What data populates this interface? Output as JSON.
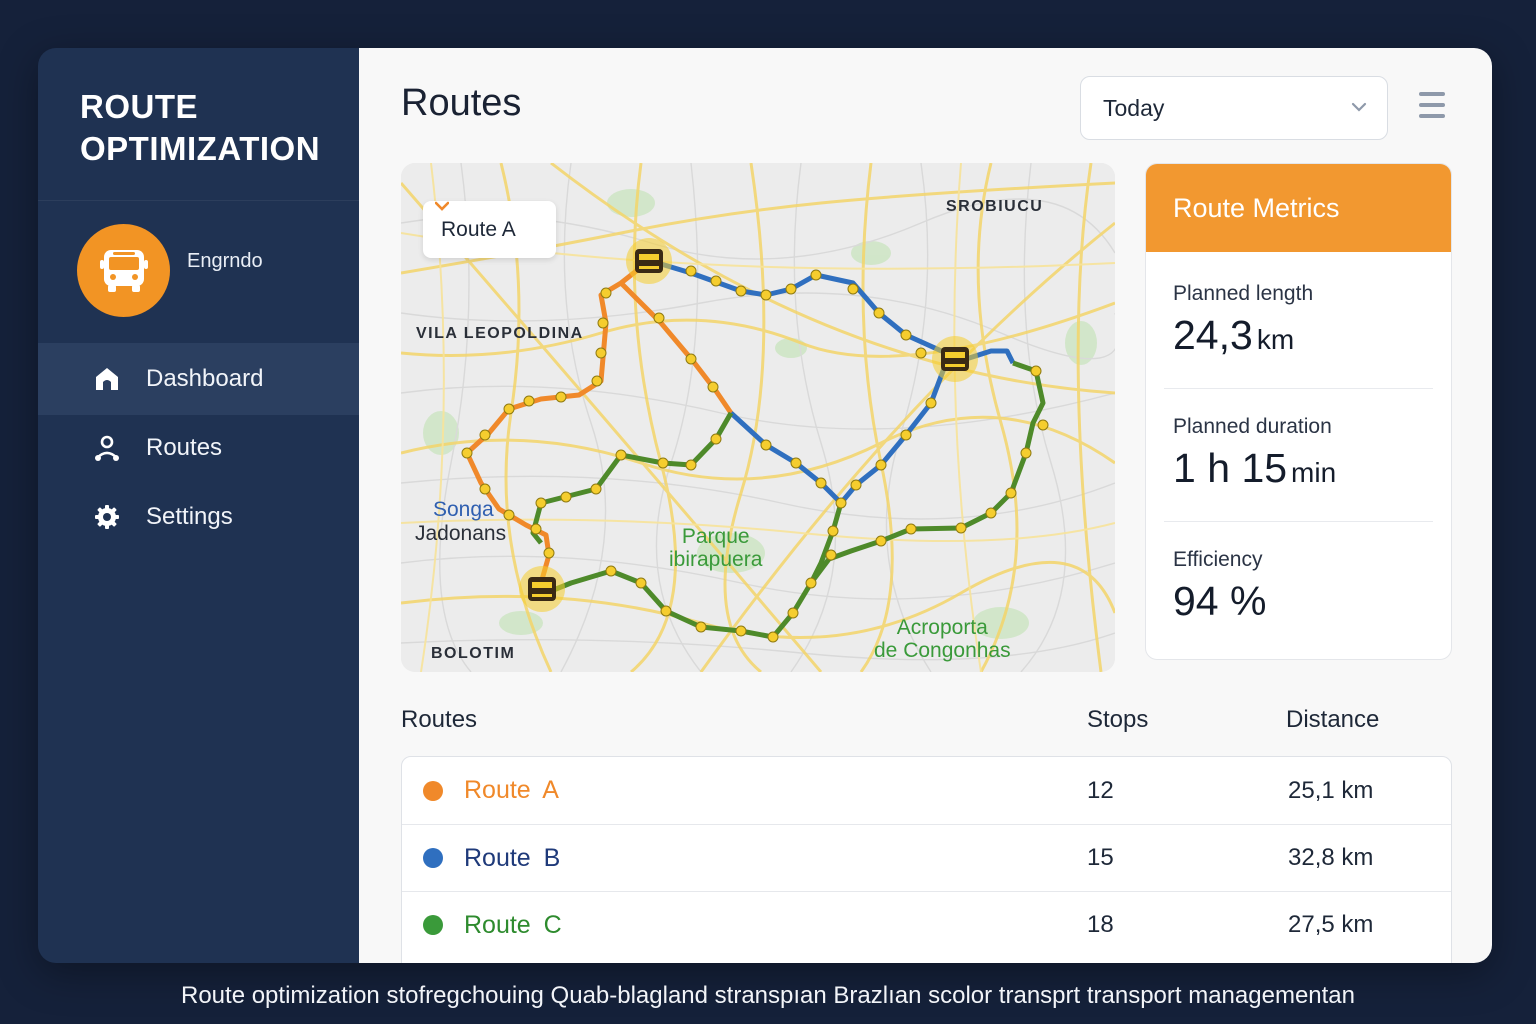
{
  "app": {
    "brand_line1": "ROUTE",
    "brand_line2": "OPTIMIZATION",
    "user_name": "Engrndo",
    "avatar_icon": "bus-icon",
    "accent_color": "#f29424"
  },
  "sidebar": {
    "items": [
      {
        "label": "Dashboard",
        "icon": "home-icon",
        "active": true
      },
      {
        "label": "Routes",
        "icon": "user-pin-icon",
        "active": false
      },
      {
        "label": "Settings",
        "icon": "gear-icon",
        "active": false
      }
    ]
  },
  "header": {
    "title": "Routes",
    "date_filter": "Today"
  },
  "map": {
    "route_selector": "Route A",
    "labels": {
      "srobiucu": "SROBIUCU",
      "vila": "VILA LEOPOLDINA",
      "songa": "Songa",
      "jadonans": "Jadonans",
      "parque_line1": "Parque",
      "parque_line2": "ibirapuera",
      "bolotim": "BOLOTIM",
      "acroporta_line1": "Acroporta",
      "acroporta_line2": "de Congonhas"
    },
    "route_colors": {
      "A": "#f0892a",
      "B": "#2f6fbf",
      "C": "#4e8a2a"
    }
  },
  "metrics": {
    "title": "Route Metrics",
    "planned_length": {
      "label": "Planned length",
      "value": "24,3",
      "unit": "km"
    },
    "planned_duration": {
      "label": "Planned duration",
      "h_value": "1",
      "h_unit": "h",
      "m_value": "15",
      "m_unit": "min"
    },
    "efficiency": {
      "label": "Efficiency",
      "value": "94 %"
    }
  },
  "routes_table": {
    "headers": {
      "name": "Routes",
      "stops": "Stops",
      "distance": "Distance"
    },
    "rows": [
      {
        "name": "Route  A",
        "stops": "12",
        "distance": "25,1 km",
        "color": "#f0892a",
        "text_color": "#f0892a"
      },
      {
        "name": "Route  B",
        "stops": "15",
        "distance": "32,8 km",
        "color": "#2f6fbf",
        "text_color": "#1f3a7a"
      },
      {
        "name": "Route  C",
        "stops": "18",
        "distance": "27,5 km",
        "color": "#3a9a3a",
        "text_color": "#2e8b2e"
      }
    ]
  },
  "caption": "Route optimization stofregchouing Quab-blagland stranspıan Brazlıan scolor transprt transport managementan"
}
